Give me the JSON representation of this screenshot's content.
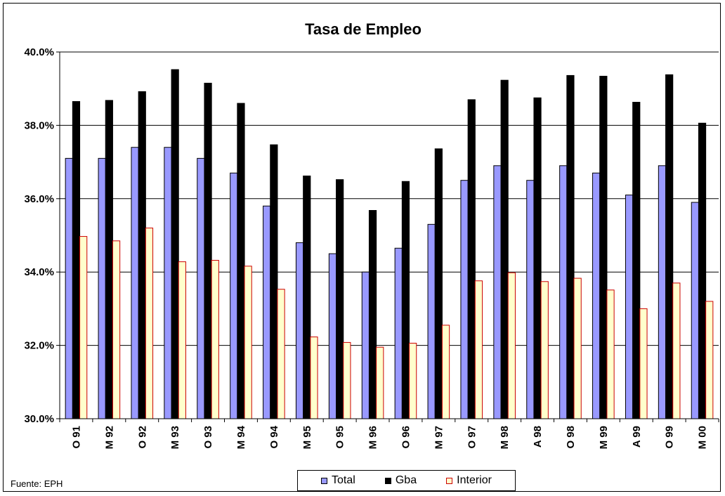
{
  "chart_data": {
    "type": "bar",
    "title": "Tasa de Empleo",
    "xlabel": "",
    "ylabel": "",
    "ylim": [
      30,
      40
    ],
    "yticks": [
      "30.0%",
      "32.0%",
      "34.0%",
      "36.0%",
      "38.0%",
      "40.0%"
    ],
    "ytick_values": [
      30,
      32,
      34,
      36,
      38,
      40
    ],
    "grid": true,
    "legend_position": "bottom",
    "categories": [
      "O 91",
      "M 92",
      "O 92",
      "M 93",
      "O 93",
      "M 94",
      "O 94",
      "M 95",
      "O 95",
      "M 96",
      "O 96",
      "M 97",
      "O 97",
      "M 98",
      "A 98",
      "O 98",
      "M 99",
      "A 99",
      "O 99",
      "M 00"
    ],
    "series": [
      {
        "name": "Total",
        "color": "#9999ff",
        "values": [
          37.1,
          37.1,
          37.4,
          37.4,
          37.1,
          36.7,
          35.8,
          34.8,
          34.5,
          34.0,
          34.65,
          35.3,
          36.5,
          36.9,
          36.5,
          36.9,
          36.7,
          36.1,
          36.9,
          35.9
        ]
      },
      {
        "name": "Gba",
        "color": "#000000",
        "values": [
          38.65,
          38.68,
          38.92,
          39.52,
          39.15,
          38.6,
          37.47,
          36.62,
          36.52,
          35.68,
          36.47,
          37.36,
          38.7,
          39.23,
          38.75,
          39.36,
          39.34,
          38.63,
          39.38,
          38.06
        ]
      },
      {
        "name": "Interior",
        "color": "#ffffcc",
        "border": "#cc0000",
        "values": [
          34.97,
          34.85,
          35.2,
          34.28,
          34.32,
          34.16,
          33.53,
          32.23,
          32.08,
          31.95,
          32.06,
          32.55,
          33.76,
          33.98,
          33.74,
          33.83,
          33.51,
          33.0,
          33.7,
          33.2
        ]
      }
    ]
  },
  "source_note": "Fuente: EPH"
}
